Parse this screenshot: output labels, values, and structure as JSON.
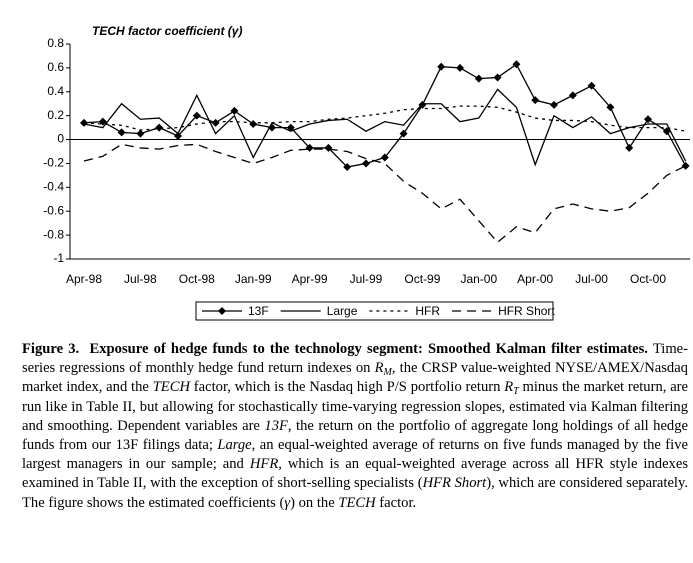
{
  "chart_data": {
    "type": "line",
    "title": "TECH factor coefficient (γ)",
    "categories": [
      "Apr-98",
      null,
      null,
      "Jul-98",
      null,
      null,
      "Oct-98",
      null,
      null,
      "Jan-99",
      null,
      null,
      "Apr-99",
      null,
      null,
      "Jul-99",
      null,
      null,
      "Oct-99",
      null,
      null,
      "Jan-00",
      null,
      null,
      "Apr-00",
      null,
      null,
      "Jul-00",
      null,
      null,
      "Oct-00",
      null,
      null
    ],
    "series": [
      {
        "name": "13F",
        "color": "#000000",
        "dash": "solid",
        "marker": "diamond",
        "values": [
          0.14,
          0.15,
          0.06,
          0.05,
          0.1,
          0.03,
          0.2,
          0.14,
          0.24,
          0.13,
          0.1,
          0.1,
          -0.07,
          -0.07,
          -0.23,
          -0.2,
          -0.15,
          0.05,
          0.29,
          0.61,
          0.6,
          0.51,
          0.52,
          0.63,
          0.33,
          0.29,
          0.37,
          0.45,
          0.27,
          -0.07,
          0.17,
          0.07,
          -0.22
        ]
      },
      {
        "name": "Large",
        "color": "#000000",
        "dash": "solid",
        "values": [
          0.13,
          0.1,
          0.3,
          0.17,
          0.18,
          0.05,
          0.37,
          0.05,
          0.2,
          -0.15,
          0.14,
          0.07,
          0.13,
          0.16,
          0.17,
          0.07,
          0.15,
          0.12,
          0.3,
          0.3,
          0.15,
          0.18,
          0.42,
          0.27,
          -0.21,
          0.2,
          0.1,
          0.19,
          0.05,
          0.1,
          0.13,
          0.13,
          -0.18
        ]
      },
      {
        "name": "HFR",
        "color": "#000000",
        "dash": "dotted",
        "values": [
          0.14,
          0.13,
          0.12,
          0.08,
          0.09,
          0.1,
          0.13,
          0.15,
          0.15,
          0.14,
          0.14,
          0.15,
          0.15,
          0.17,
          0.18,
          0.2,
          0.22,
          0.25,
          0.26,
          0.26,
          0.28,
          0.28,
          0.27,
          0.23,
          0.18,
          0.16,
          0.16,
          0.15,
          0.12,
          0.1,
          0.1,
          0.1,
          0.07
        ]
      },
      {
        "name": "HFR Short",
        "color": "#000000",
        "dash": "dashed",
        "values": [
          -0.18,
          -0.14,
          -0.04,
          -0.07,
          -0.08,
          -0.05,
          -0.04,
          -0.1,
          -0.15,
          -0.2,
          -0.15,
          -0.09,
          -0.08,
          -0.08,
          -0.1,
          -0.16,
          -0.2,
          -0.35,
          -0.45,
          -0.58,
          -0.5,
          -0.68,
          -0.86,
          -0.73,
          -0.78,
          -0.58,
          -0.54,
          -0.58,
          -0.6,
          -0.57,
          -0.45,
          -0.3,
          -0.22
        ]
      }
    ],
    "ylim": [
      -1,
      0.8
    ],
    "yticks": [
      0.8,
      0.6,
      0.4,
      0.2,
      0,
      -0.2,
      -0.4,
      -0.6,
      -0.8,
      -1
    ],
    "grid": false,
    "legend": "bottom"
  },
  "caption": {
    "label": "Figure 3.",
    "title": "Exposure of hedge funds to the technology segment: Smoothed Kalman filter estimates.",
    "body": [
      {
        "text": "Time-series regressions of monthly hedge fund return indexes on "
      },
      {
        "text": "R",
        "italic": true
      },
      {
        "text": "M",
        "italic": true,
        "sub": true
      },
      {
        "text": ", the CRSP value-weighted NYSE/AMEX/Nasdaq market index, and the "
      },
      {
        "text": "TECH",
        "italic": true
      },
      {
        "text": " factor, which is the Nasdaq high P/S portfolio return "
      },
      {
        "text": "R",
        "italic": true
      },
      {
        "text": "T",
        "italic": true,
        "sub": true
      },
      {
        "text": " minus the market return, are run like in Table II, but allowing for stochastically time-varying regression slopes, estimated via Kalman filtering and smoothing. Dependent variables are "
      },
      {
        "text": "13F",
        "italic": true
      },
      {
        "text": ", the return on the portfolio of aggregate long holdings of all hedge funds from our 13F filings data; "
      },
      {
        "text": "Large",
        "italic": true
      },
      {
        "text": ", an equal-weighted average of returns on five funds managed by the five largest managers in our sample; and "
      },
      {
        "text": "HFR",
        "italic": true
      },
      {
        "text": ", which is an equal-weighted average across all HFR style indexes examined in Table II, with the exception of short-selling specialists ("
      },
      {
        "text": "HFR Short",
        "italic": true
      },
      {
        "text": "), which are considered separately. The figure shows the estimated coefficients ("
      },
      {
        "text": "γ",
        "italic": true
      },
      {
        "text": ") on the "
      },
      {
        "text": "TECH",
        "italic": true
      },
      {
        "text": " factor."
      }
    ]
  }
}
